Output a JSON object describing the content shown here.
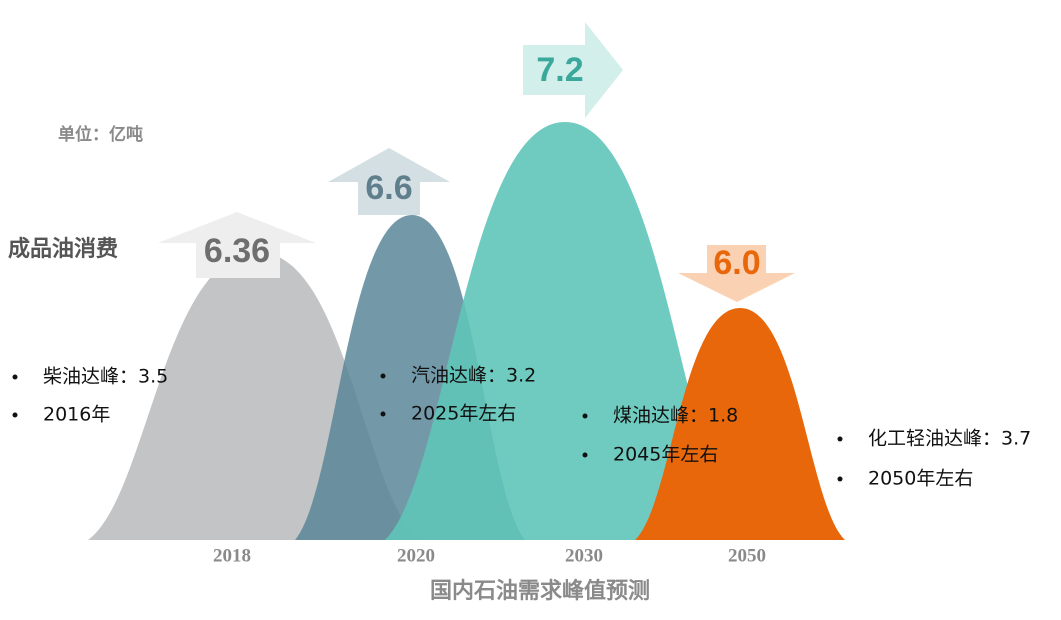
{
  "chart_data": {
    "type": "bell",
    "title": "国内石油需求峰值预测",
    "unit": "单位：亿吨",
    "ylabel": "成品油消费",
    "categories": [
      "2018",
      "2020",
      "2030",
      "2050"
    ],
    "values": [
      6.36,
      6.6,
      7.2,
      6.0
    ],
    "value_labels": [
      "6.36",
      "6.6",
      "7.2",
      "6.0"
    ],
    "colors": [
      "#c3c4c6",
      "#5a8799",
      "#5fc5b8",
      "#e8670a"
    ],
    "arrow_colors": [
      "#eeeeee",
      "#d4dfe3",
      "#d3efeb",
      "#fad2b3"
    ],
    "label_colors": [
      "#6e6e6e",
      "#5f7f8c",
      "#3aa89a",
      "#e8670a"
    ],
    "annotations": [
      [
        "柴油达峰：3.5",
        "2016年"
      ],
      [
        "汽油达峰：3.2",
        "2025年左右"
      ],
      [
        "煤油达峰：1.8",
        "2045年左右"
      ],
      [
        "化工轻油达峰：3.7",
        "2050年左右"
      ]
    ]
  }
}
